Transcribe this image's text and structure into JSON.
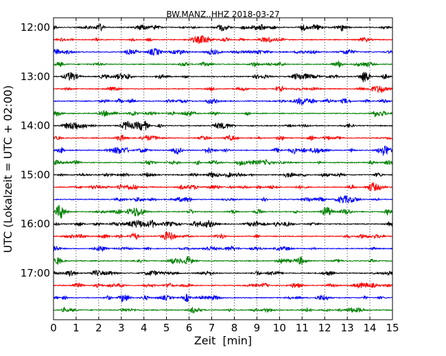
{
  "chart_data": {
    "type": "line",
    "title": "BW.MANZ..HHZ 2018-03-27",
    "xlabel": "Zeit  [min]",
    "ylabel": "UTC (Lokalzeit = UTC + 02:00)",
    "xlim": [
      0,
      15
    ],
    "x_ticks": [
      "0",
      "1",
      "2",
      "3",
      "4",
      "5",
      "6",
      "7",
      "8",
      "9",
      "10",
      "11",
      "12",
      "13",
      "14",
      "15"
    ],
    "y_tick_labels": [
      "12:00",
      "13:00",
      "14:00",
      "15:00",
      "16:00",
      "17:00"
    ],
    "grid": "vertical dotted lines at each minute",
    "trace_start_times": [
      "12:00",
      "12:15",
      "12:30",
      "12:45",
      "13:00",
      "13:15",
      "13:30",
      "13:45",
      "14:00",
      "14:15",
      "14:30",
      "14:45",
      "15:00",
      "15:15",
      "15:30",
      "15:45",
      "16:00",
      "16:15",
      "16:30",
      "16:45",
      "17:00",
      "17:15",
      "17:30",
      "17:45"
    ],
    "trace_colors": [
      "#000000",
      "#ff0000",
      "#0000ff",
      "#008000"
    ],
    "series": []
  }
}
